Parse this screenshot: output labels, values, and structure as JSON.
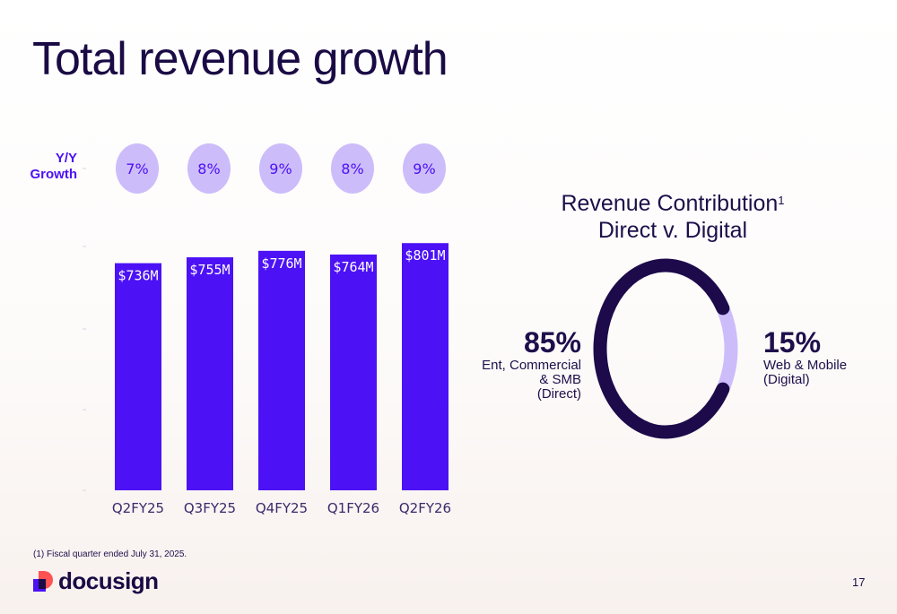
{
  "slide": {
    "title": "Total revenue growth",
    "footnote": "(1) Fiscal quarter ended July 31, 2025.",
    "page_number": "17",
    "logo_text": "docusign"
  },
  "growth_label": {
    "line1": "Y/Y",
    "line2": "Growth"
  },
  "colors": {
    "bar": "#4c12f5",
    "bubble": "#cdbcfa",
    "bubble_text": "#4c12f5",
    "donut_direct": "#1d0a4a",
    "donut_digital": "#cdbcfa",
    "title": "#1a0b45"
  },
  "chart_data": [
    {
      "type": "bar",
      "categories": [
        "Q2FY25",
        "Q3FY25",
        "Q4FY25",
        "Q1FY26",
        "Q2FY26"
      ],
      "values": [
        736,
        755,
        776,
        764,
        801
      ],
      "value_labels": [
        "$736M",
        "$755M",
        "$776M",
        "$764M",
        "$801M"
      ],
      "growth_labels": [
        "7%",
        "8%",
        "9%",
        "8%",
        "9%"
      ],
      "ylim": [
        0,
        850
      ]
    },
    {
      "type": "pie",
      "title_line1": "Revenue Contribution",
      "title_sup": "1",
      "title_line2": "Direct v. Digital",
      "slices": [
        {
          "pct_label": "85%",
          "value": 85,
          "desc": [
            "Ent, Commercial",
            "& SMB",
            "(Direct)"
          ]
        },
        {
          "pct_label": "15%",
          "value": 15,
          "desc": [
            "Web & Mobile",
            "(Digital)"
          ]
        }
      ]
    }
  ]
}
